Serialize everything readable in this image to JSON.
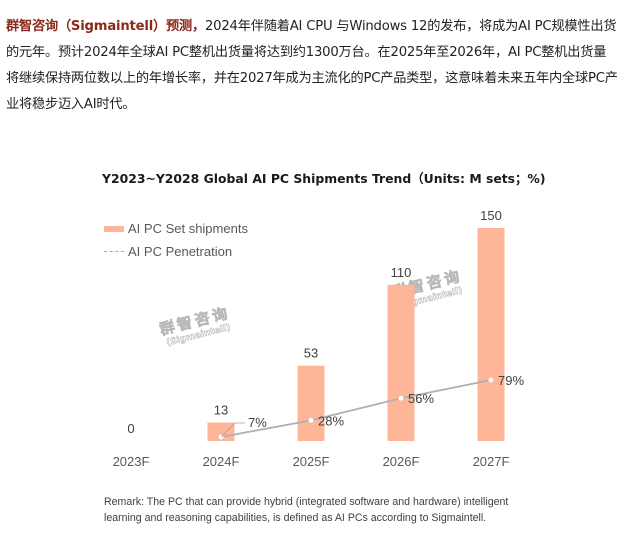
{
  "paragraph": {
    "lead": "群智咨询（Sigmaintell）预测，",
    "body": "2024年伴随着AI CPU 与Windows 12的发布，将成为AI PC规模性出货的元年。预计2024年全球AI PC整机出货量将达到约1300万台。在2025年至2026年，AI PC整机出货量将继续保持两位数以上的年增长率，并在2027年成为主流化的PC产品类型，这意味着未来五年内全球PC产业将稳步迈入AI时代。"
  },
  "watermark": {
    "cn": "群智咨询",
    "en": "(Sigmaintell)"
  },
  "remark": "Remark: The PC that can provide hybrid (integrated software and hardware) intelligent learning and reasoning capabilities, is defined as AI PCs according to Sigmaintell.",
  "colors": {
    "bar": "#ffb598",
    "line": "#b0b0b0",
    "lead_text": "#8b2a1a"
  },
  "chart_data": {
    "type": "bar",
    "title": "Y2023~Y2028 Global AI PC Shipments Trend（Units: M sets；%)",
    "xlabel": "",
    "ylabel": "",
    "categories": [
      "2023F",
      "2024F",
      "2025F",
      "2026F",
      "2027F"
    ],
    "series": [
      {
        "name": "AI PC Set shipments",
        "type": "bar",
        "values": [
          0,
          13,
          53,
          110,
          150
        ],
        "labels": [
          "0",
          "13",
          "53",
          "110",
          "150"
        ]
      },
      {
        "name": "AI PC Penetration",
        "type": "line",
        "values": [
          null,
          7,
          28,
          56,
          79
        ],
        "labels": [
          "",
          "7%",
          "28%",
          "56%",
          "79%"
        ],
        "unit": "%"
      }
    ],
    "legend": {
      "position": "top-left",
      "items": [
        "AI PC Set shipments",
        "AI PC Penetration"
      ]
    },
    "grid": false,
    "ylim": [
      0,
      150
    ]
  }
}
